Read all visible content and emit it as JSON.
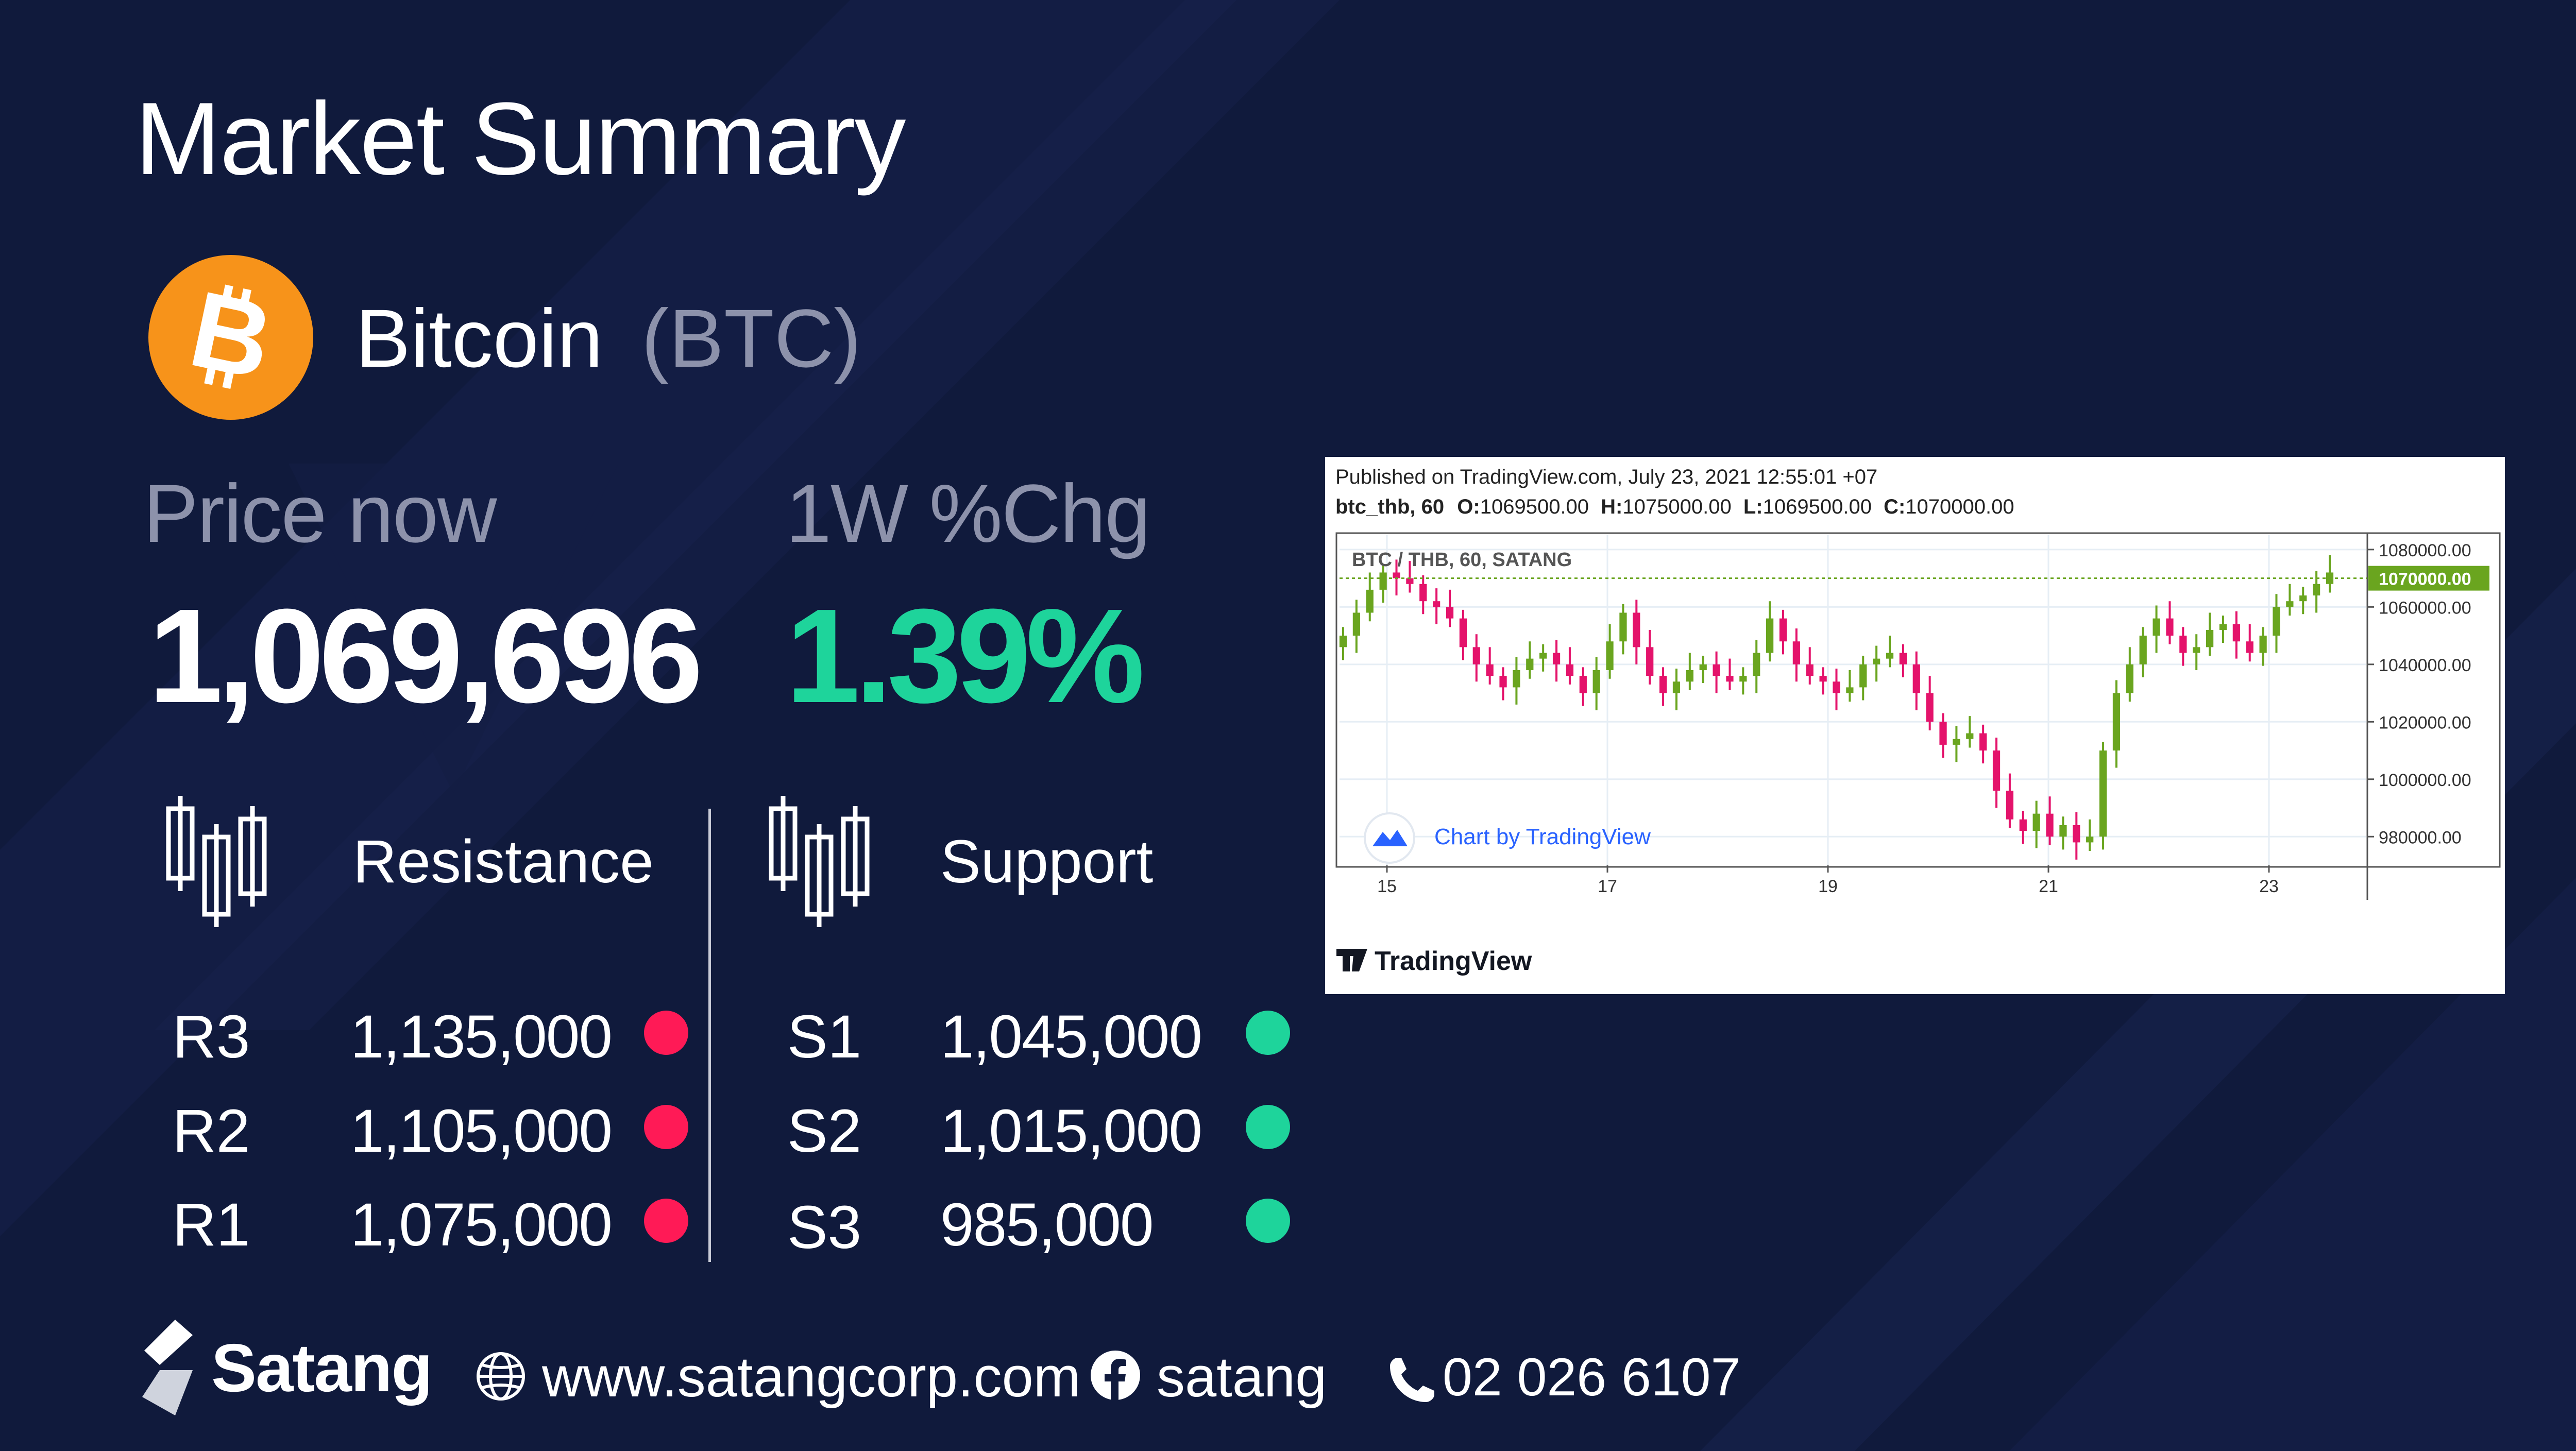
{
  "header": {
    "title": "Market Summary"
  },
  "coin": {
    "name": "Bitcoin",
    "symbol": "(BTC)",
    "logo_icon": "bitcoin-icon",
    "logo_color": "#f7931a"
  },
  "metrics": {
    "price_label": "Price now",
    "price_value": "1,069,696",
    "change_label": "1W %Chg",
    "change_value": "1.39%",
    "change_color": "#1ed49b"
  },
  "levels": {
    "resistance_heading": "Resistance",
    "support_heading": "Support",
    "resistance": [
      {
        "label": "R3",
        "value": "1,135,000"
      },
      {
        "label": "R2",
        "value": "1,105,000"
      },
      {
        "label": "R1",
        "value": "1,075,000"
      }
    ],
    "support": [
      {
        "label": "S1",
        "value": "1,045,000"
      },
      {
        "label": "S2",
        "value": "1,015,000"
      },
      {
        "label": "S3",
        "value": "985,000"
      }
    ],
    "resistance_color": "#ff1a56",
    "support_color": "#1ed49b"
  },
  "chart": {
    "published": "Published on TradingView.com, July 23, 2021 12:55:01 +07",
    "ohlc_symbol": "btc_thb, 60",
    "ohlc_o_label": "O:",
    "ohlc_o": "1069500.00",
    "ohlc_h_label": "H:",
    "ohlc_h": "1075000.00",
    "ohlc_l_label": "L:",
    "ohlc_l": "1069500.00",
    "ohlc_c_label": "C:",
    "ohlc_c": "1070000.00",
    "pane_label": "BTC / THB, 60, SATANG",
    "watermark": "Chart by TradingView",
    "footer_brand": "TradingView",
    "y_ticks": [
      "1080000.00",
      "1060000.00",
      "1040000.00",
      "1020000.00",
      "1000000.00",
      "980000.00"
    ],
    "current_price": "1070000.00",
    "x_ticks": [
      "15",
      "17",
      "19",
      "21",
      "23"
    ],
    "up_color": "#6aa51f",
    "down_color": "#e4136b"
  },
  "chart_data": {
    "type": "candlestick",
    "title": "BTC / THB, 60, SATANG",
    "xlabel": "",
    "ylabel": "",
    "x_ticks": [
      "15",
      "17",
      "19",
      "21",
      "23"
    ],
    "ylim": [
      970000,
      1085000
    ],
    "current_price": 1070000,
    "close_series": [
      1050000,
      1058000,
      1066000,
      1072000,
      1070000,
      1068000,
      1062000,
      1060000,
      1056000,
      1046000,
      1040000,
      1036000,
      1032000,
      1038000,
      1042000,
      1044000,
      1040000,
      1036000,
      1030000,
      1038000,
      1048000,
      1058000,
      1046000,
      1036000,
      1030000,
      1034000,
      1038000,
      1040000,
      1036000,
      1034000,
      1036000,
      1044000,
      1056000,
      1048000,
      1040000,
      1036000,
      1034000,
      1030000,
      1032000,
      1040000,
      1042000,
      1044000,
      1040000,
      1030000,
      1020000,
      1012000,
      1014000,
      1016000,
      1010000,
      996000,
      986000,
      982000,
      988000,
      980000,
      984000,
      978000,
      980000,
      1010000,
      1030000,
      1040000,
      1050000,
      1056000,
      1050000,
      1044000,
      1046000,
      1052000,
      1054000,
      1048000,
      1044000,
      1050000,
      1060000,
      1062000,
      1064000,
      1068000,
      1072000
    ]
  },
  "footer": {
    "brand": "Satang",
    "website": "www.satangcorp.com",
    "facebook": "satang",
    "phone": "02 026 6107"
  }
}
